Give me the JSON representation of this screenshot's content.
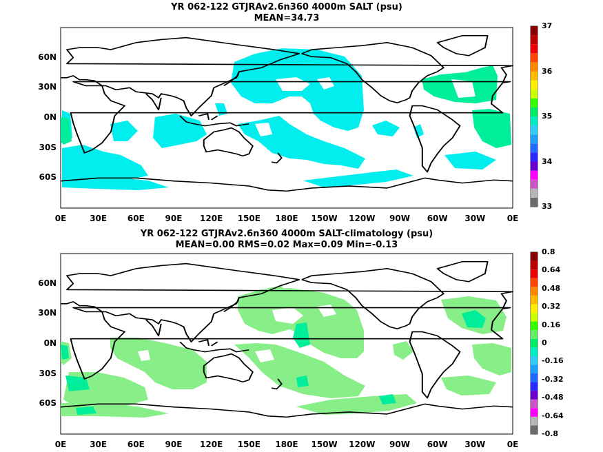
{
  "panels": [
    {
      "title_line1": "YR 062-122 GTJRAv2.6n360 4000m SALT (psu)",
      "title_line2": "MEAN=34.73",
      "y_ticks": [
        "60N",
        "30N",
        "0N",
        "30S",
        "60S"
      ],
      "x_ticks": [
        "0E",
        "30E",
        "60E",
        "90E",
        "120E",
        "150E",
        "180E",
        "150W",
        "120W",
        "90W",
        "60W",
        "30W",
        "0E"
      ],
      "colorbar_labels": [
        "37",
        "36",
        "35",
        "34",
        "33"
      ],
      "colorbar_colors": [
        "#6b6b6b",
        "#b6b6b6",
        "#cc55cc",
        "#ff00ff",
        "#6a00cc",
        "#2a2aff",
        "#1e6cff",
        "#1ea0ff",
        "#33ccff",
        "#00eec0",
        "#00ee66",
        "#33ff00",
        "#ccff00",
        "#ffee00",
        "#ffbb00",
        "#ff8800",
        "#ff4400",
        "#ee0000",
        "#bb0000",
        "#880000"
      ],
      "fill_color": "#00eeee"
    },
    {
      "title_line1": "YR 062-122 GTJRAv2.6n360 4000m SALT-climatology (psu)",
      "title_line2": "MEAN=0.00   RMS=0.02   Max=0.09   Min=-0.13",
      "y_ticks": [
        "60N",
        "30N",
        "0N",
        "30S",
        "60S"
      ],
      "x_ticks": [
        "0E",
        "30E",
        "60E",
        "90E",
        "120E",
        "150E",
        "180E",
        "150W",
        "120W",
        "90W",
        "60W",
        "30W",
        "0E"
      ],
      "colorbar_labels": [
        "0.8",
        "0.64",
        "0.48",
        "0.32",
        "0.16",
        "0",
        "-0.16",
        "-0.32",
        "-0.48",
        "-0.64",
        "-0.8"
      ],
      "colorbar_colors": [
        "#6b6b6b",
        "#b6b6b6",
        "#ff00ff",
        "#cc55cc",
        "#6a00cc",
        "#2a2aff",
        "#1e6cff",
        "#1ea0ff",
        "#33ccff",
        "#00eec0",
        "#00ee66",
        "#66ee66",
        "#33ff00",
        "#ccff00",
        "#ffee00",
        "#ffbb00",
        "#ff8800",
        "#ff4400",
        "#ee0000",
        "#bb0000",
        "#880000"
      ],
      "fill_color": "#88ee88",
      "accent_color": "#00ee99"
    }
  ]
}
